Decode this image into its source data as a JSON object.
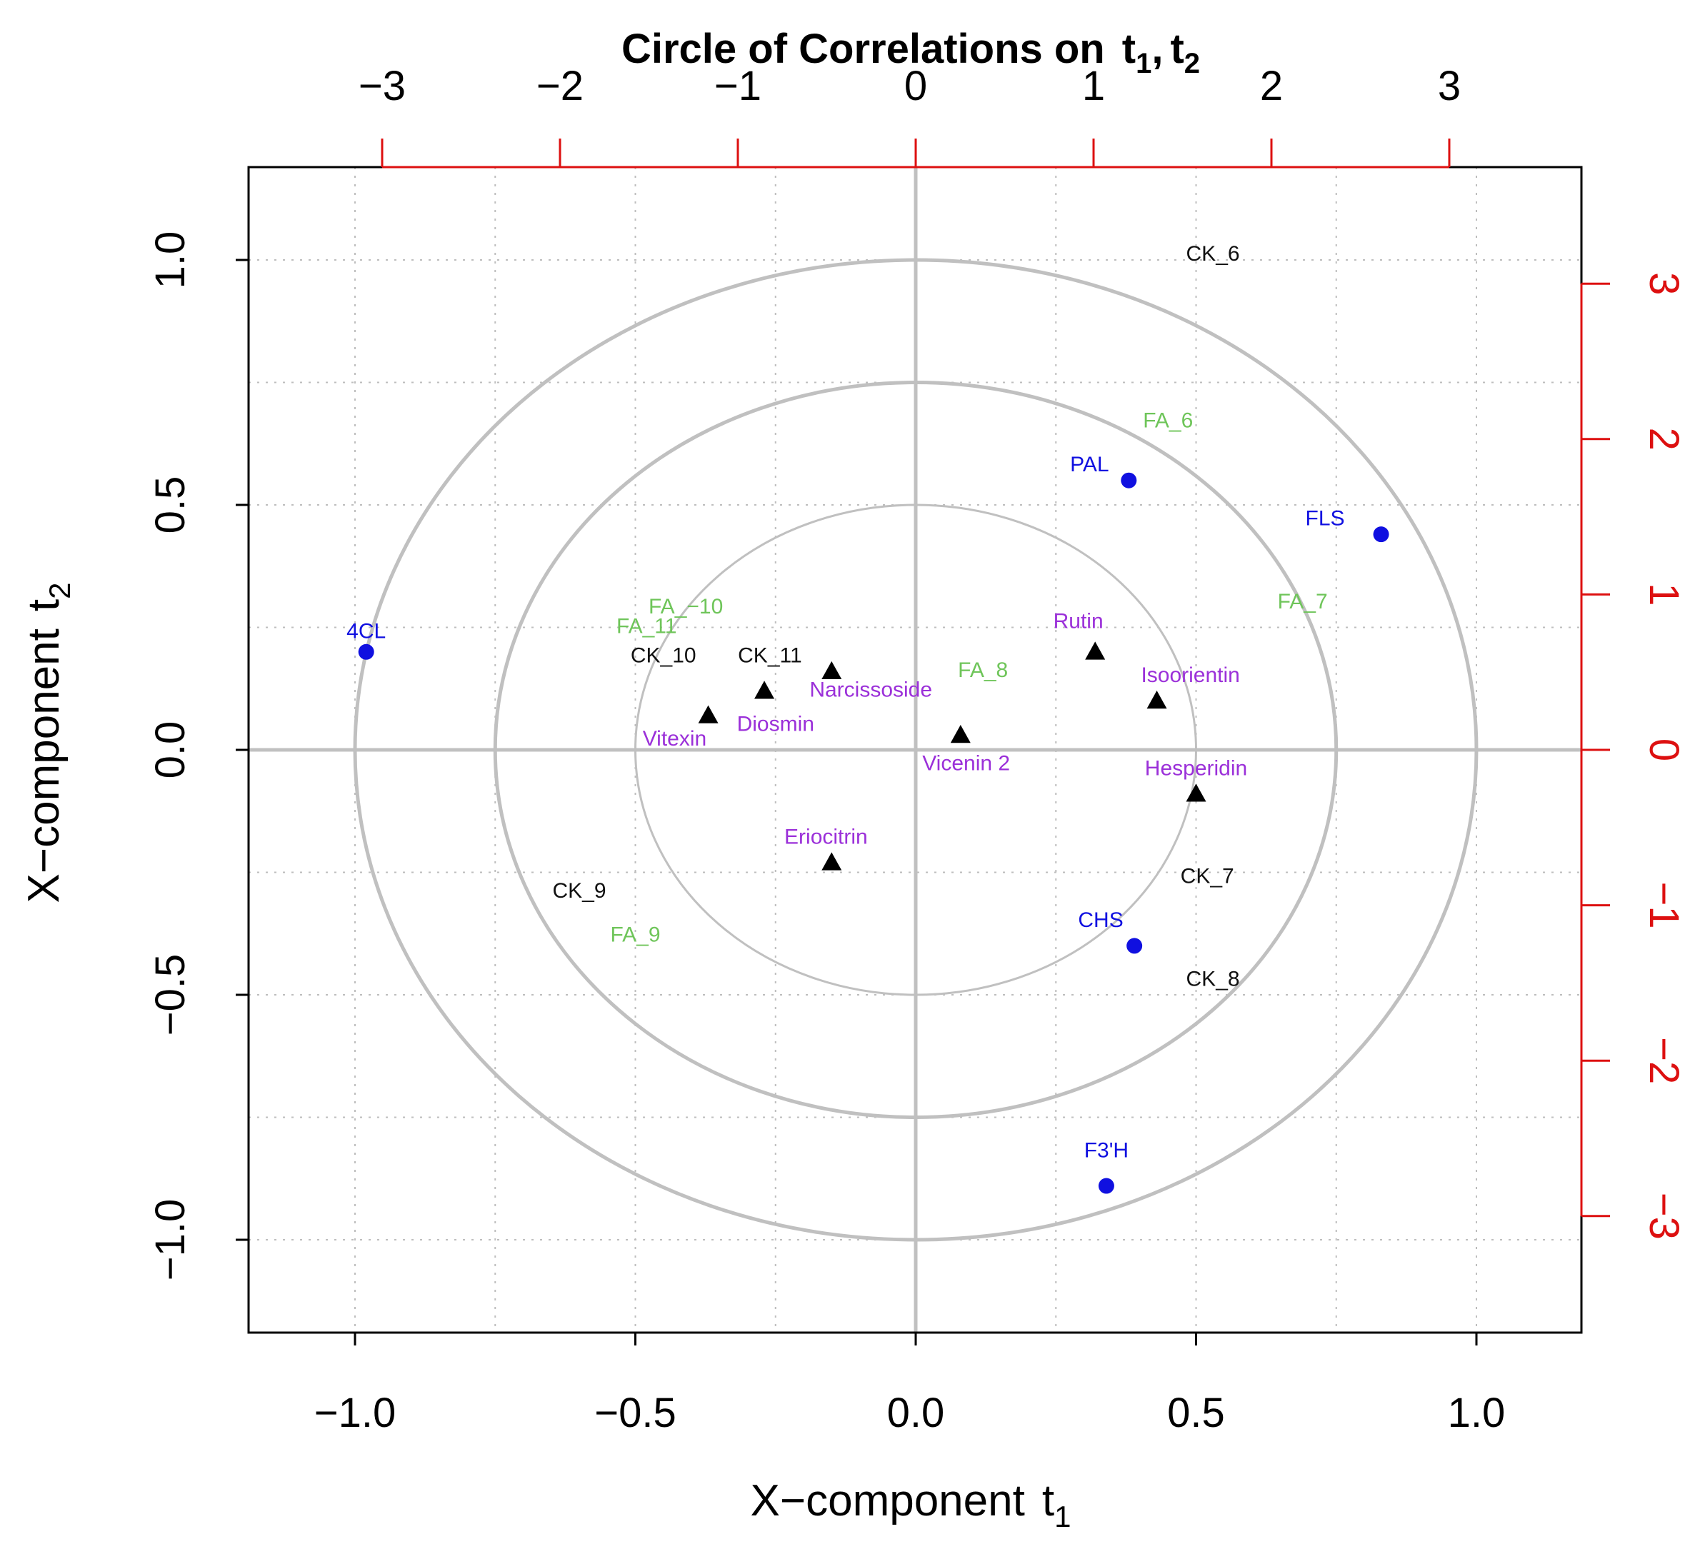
{
  "chart_data": {
    "type": "scatter",
    "title": {
      "main": "Circle of Correlations on",
      "t1": "t",
      "sub1": "1",
      "sep": ",",
      "t2": "t",
      "sub2": "2"
    },
    "xlabel": {
      "main": "X−component",
      "sym": "t",
      "sub": "1"
    },
    "ylabel": {
      "main": "X−component",
      "sym": "t",
      "sub": "2"
    },
    "xlim": [
      -1.2,
      1.2
    ],
    "ylim": [
      -1.2,
      1.2
    ],
    "bottom_ticks": [
      {
        "v": -1.0,
        "label": "−1.0"
      },
      {
        "v": -0.5,
        "label": "−0.5"
      },
      {
        "v": 0.0,
        "label": "0.0"
      },
      {
        "v": 0.5,
        "label": "0.5"
      },
      {
        "v": 1.0,
        "label": "1.0"
      }
    ],
    "left_ticks": [
      {
        "v": -1.0,
        "label": "−1.0"
      },
      {
        "v": -0.5,
        "label": "−0.5"
      },
      {
        "v": 0.0,
        "label": "0.0"
      },
      {
        "v": 0.5,
        "label": "0.5"
      },
      {
        "v": 1.0,
        "label": "1.0"
      }
    ],
    "secondary_scale": 0.3172,
    "top_ticks": [
      {
        "v": -3,
        "label": "−3"
      },
      {
        "v": -2,
        "label": "−2"
      },
      {
        "v": -1,
        "label": "−1"
      },
      {
        "v": 0,
        "label": "0"
      },
      {
        "v": 1,
        "label": "1"
      },
      {
        "v": 2,
        "label": "2"
      },
      {
        "v": 3,
        "label": "3"
      }
    ],
    "right_ticks": [
      {
        "v": -3,
        "label": "−3"
      },
      {
        "v": -2,
        "label": "−2"
      },
      {
        "v": -1,
        "label": "−1"
      },
      {
        "v": 0,
        "label": "0"
      },
      {
        "v": 1,
        "label": "1"
      },
      {
        "v": 2,
        "label": "2"
      },
      {
        "v": 3,
        "label": "3"
      }
    ],
    "grid_minor": [
      -0.75,
      -0.25,
      0.25,
      0.75
    ],
    "grid_major": [
      -1.0,
      -0.5,
      0.5,
      1.0
    ],
    "circles": [
      0.5,
      0.75,
      1.0
    ],
    "colors": {
      "frame": "#000000",
      "grid": "#bdbdbd",
      "circle": "#c0c0c0",
      "secondary_axis": "#dd1010",
      "genes": "#1010e0",
      "fatty_acids": "#6fc55a",
      "cytokinins": "#111111",
      "flavonoids": "#9b30d9",
      "triangle": "#000000"
    },
    "series": [
      {
        "name": "genes",
        "marker": "dot",
        "color": "#1010e0",
        "points": [
          {
            "label": "4CL",
            "x": -0.98,
            "y": 0.2
          },
          {
            "label": "PAL",
            "x": 0.38,
            "y": 0.55
          },
          {
            "label": "FLS",
            "x": 0.83,
            "y": 0.44
          },
          {
            "label": "CHS",
            "x": 0.39,
            "y": -0.4
          },
          {
            "label": "F3'H",
            "x": 0.34,
            "y": -0.89
          }
        ]
      },
      {
        "name": "flavonoids",
        "marker": "triangle",
        "color": "#000000",
        "points": [
          {
            "label": "Narcissoside",
            "x": -0.15,
            "y": 0.16
          },
          {
            "label": "Diosmin",
            "x": -0.27,
            "y": 0.12
          },
          {
            "label": "Vitexin",
            "x": -0.37,
            "y": 0.07
          },
          {
            "label": "Vicenin 2",
            "x": 0.08,
            "y": 0.03
          },
          {
            "label": "Rutin",
            "x": 0.32,
            "y": 0.2
          },
          {
            "label": "Isoorientin",
            "x": 0.43,
            "y": 0.1
          },
          {
            "label": "Hesperidin",
            "x": 0.5,
            "y": -0.09
          },
          {
            "label": "Eriocitrin",
            "x": -0.15,
            "y": -0.23
          }
        ]
      },
      {
        "name": "fatty_acids",
        "marker": "none",
        "color": "#6fc55a",
        "points": [
          {
            "label": "FA_6",
            "x": 0.45,
            "y": 0.67
          },
          {
            "label": "FA_7",
            "x": 0.69,
            "y": 0.3
          },
          {
            "label": "FA_8",
            "x": 0.12,
            "y": 0.16
          },
          {
            "label": "FA_−10",
            "x": -0.41,
            "y": 0.29
          },
          {
            "label": "FA_11",
            "x": -0.48,
            "y": 0.25
          },
          {
            "label": "FA_9",
            "x": -0.5,
            "y": -0.38
          }
        ]
      },
      {
        "name": "cytokinins",
        "marker": "none",
        "color": "#111111",
        "points": [
          {
            "label": "CK_6",
            "x": 0.53,
            "y": 1.01
          },
          {
            "label": "CK_10",
            "x": -0.45,
            "y": 0.19
          },
          {
            "label": "CK_11",
            "x": -0.26,
            "y": 0.19
          },
          {
            "label": "CK_7",
            "x": 0.52,
            "y": -0.26
          },
          {
            "label": "CK_8",
            "x": 0.53,
            "y": -0.47
          },
          {
            "label": "CK_9",
            "x": -0.6,
            "y": -0.29
          }
        ]
      }
    ],
    "point_labels": [
      {
        "text": "4CL",
        "x": -0.98,
        "y": 0.24,
        "color": "#1010e0"
      },
      {
        "text": "PAL",
        "x": 0.31,
        "y": 0.58,
        "color": "#1010e0"
      },
      {
        "text": "FLS",
        "x": 0.73,
        "y": 0.47,
        "color": "#1010e0"
      },
      {
        "text": "CHS",
        "x": 0.33,
        "y": -0.35,
        "color": "#1010e0"
      },
      {
        "text": "F3'H",
        "x": 0.34,
        "y": -0.82,
        "color": "#1010e0"
      },
      {
        "text": "Narcissoside",
        "x": -0.08,
        "y": 0.12,
        "color": "#9b30d9"
      },
      {
        "text": "Diosmin",
        "x": -0.25,
        "y": 0.05,
        "color": "#9b30d9"
      },
      {
        "text": "Vitexin",
        "x": -0.43,
        "y": 0.02,
        "color": "#9b30d9"
      },
      {
        "text": "Vicenin 2",
        "x": 0.09,
        "y": -0.03,
        "color": "#9b30d9"
      },
      {
        "text": "Rutin",
        "x": 0.29,
        "y": 0.26,
        "color": "#9b30d9"
      },
      {
        "text": "Isoorientin",
        "x": 0.49,
        "y": 0.15,
        "color": "#9b30d9"
      },
      {
        "text": "Hesperidin",
        "x": 0.5,
        "y": -0.04,
        "color": "#9b30d9"
      },
      {
        "text": "Eriocitrin",
        "x": -0.16,
        "y": -0.18,
        "color": "#9b30d9"
      },
      {
        "text": "FA_6",
        "x": 0.45,
        "y": 0.67,
        "color": "#6fc55a"
      },
      {
        "text": "FA_7",
        "x": 0.69,
        "y": 0.3,
        "color": "#6fc55a"
      },
      {
        "text": "FA_8",
        "x": 0.12,
        "y": 0.16,
        "color": "#6fc55a"
      },
      {
        "text": "FA_−10",
        "x": -0.41,
        "y": 0.29,
        "color": "#6fc55a"
      },
      {
        "text": "FA_11",
        "x": -0.48,
        "y": 0.25,
        "color": "#6fc55a"
      },
      {
        "text": "FA_9",
        "x": -0.5,
        "y": -0.38,
        "color": "#6fc55a"
      },
      {
        "text": "CK_6",
        "x": 0.53,
        "y": 1.01,
        "color": "#111111"
      },
      {
        "text": "CK_10",
        "x": -0.45,
        "y": 0.19,
        "color": "#111111"
      },
      {
        "text": "CK_11",
        "x": -0.26,
        "y": 0.19,
        "color": "#111111"
      },
      {
        "text": "CK_7",
        "x": 0.52,
        "y": -0.26,
        "color": "#111111"
      },
      {
        "text": "CK_8",
        "x": 0.53,
        "y": -0.47,
        "color": "#111111"
      },
      {
        "text": "CK_9",
        "x": -0.6,
        "y": -0.29,
        "color": "#111111"
      }
    ]
  }
}
